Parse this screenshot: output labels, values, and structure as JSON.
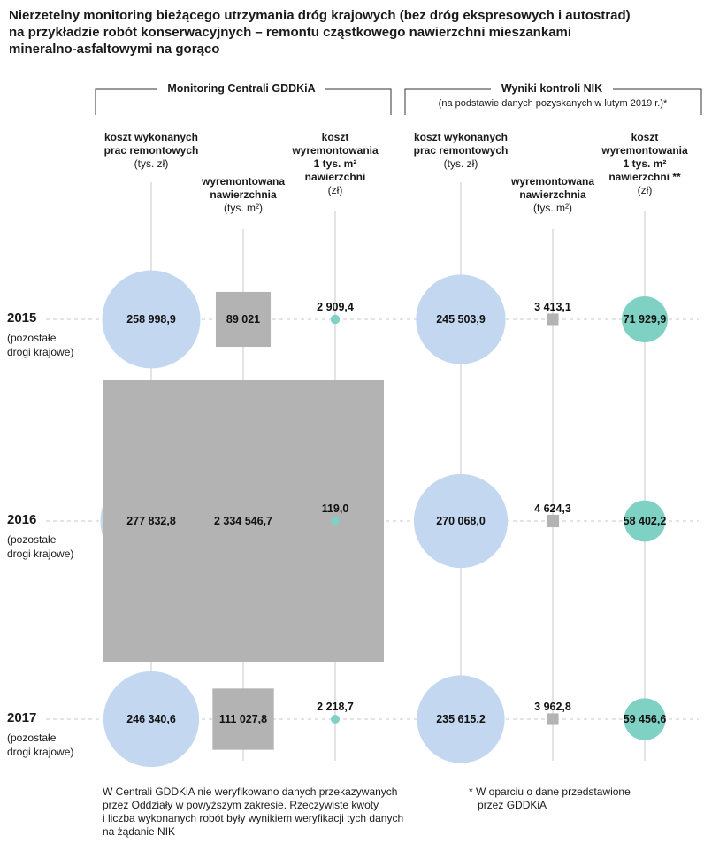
{
  "title": {
    "line1": "Nierzetelny monitoring bieżącego utrzymania dróg krajowych (bez dróg ekspresowych i autostrad)",
    "line2": "na przykładzie robót konserwacyjnych – remontu cząstkowego nawierzchni mieszankami",
    "line3": "mineralno-asfaltowymi na gorąco"
  },
  "groups": {
    "left": "Monitoring Centrali GDDKiA",
    "right": "Wyniki kontroli NIK",
    "right_sub": "(na podstawie danych pozyskanych w lutym 2019 r.)*"
  },
  "columns": {
    "c1": {
      "l1": "koszt wykonanych",
      "l2": "prac remontowych",
      "unit": "(tys. zł)"
    },
    "c2": {
      "l1": "wyremontowana",
      "l2": "nawierzchnia",
      "unit": "(tys. m²)"
    },
    "c3": {
      "l1": "koszt",
      "l2": "wyremontowania",
      "l3": "1 tys. m²",
      "l4": "nawierzchni",
      "unit": "(zł)"
    },
    "c4": {
      "l1": "koszt wykonanych",
      "l2": "prac remontowych",
      "unit": "(tys. zł)"
    },
    "c5": {
      "l1": "wyremontowana",
      "l2": "nawierzchnia",
      "unit": "(tys. m²)"
    },
    "c6": {
      "l1": "koszt",
      "l2": "wyremontowania",
      "l3": "1 tys. m²",
      "l4": "nawierzchni **",
      "unit": "(zł)"
    }
  },
  "years": [
    {
      "year": "2015",
      "note1": "(pozostałe",
      "note2": "drogi krajowe)"
    },
    {
      "year": "2016",
      "note1": "(pozostałe",
      "note2": "drogi krajowe)"
    },
    {
      "year": "2017",
      "note1": "(pozostałe",
      "note2": "drogi krajowe)"
    }
  ],
  "footnotes": {
    "left1": "W Centrali GDDKiA nie weryfikowano danych przekazywanych",
    "left2": "przez Oddziały w powyższym zakresie. Rzeczywiste kwoty",
    "left3": "i liczba wykonanych robót były wynikiem weryfikacji tych danych",
    "left4": "na żądanie NIK",
    "right1": "* W oparciu o dane przedstawione",
    "right2": "przez GDDKiA"
  },
  "colors": {
    "blue": "#c3d8f0",
    "gray": "#b3b3b3",
    "teal": "#7fd1c3"
  },
  "chart_data": {
    "type": "bubble",
    "categories": [
      "2015",
      "2016",
      "2017"
    ],
    "series": [
      {
        "name": "koszt wykonanych prac remontowych (tys. zł) – Monitoring Centrali GDDKiA",
        "shape": "circle",
        "color": "#c3d8f0",
        "values": [
          258998.9,
          277832.8,
          246340.6
        ],
        "labels": [
          "258 998,9",
          "277 832,8",
          "246 340,6"
        ]
      },
      {
        "name": "wyremontowana nawierzchnia (tys. m²) – Monitoring Centrali GDDKiA",
        "shape": "square",
        "color": "#b3b3b3",
        "values": [
          89021,
          2334546.7,
          111027.8
        ],
        "labels": [
          "89 021",
          "2 334 546,7",
          "111 027,8"
        ]
      },
      {
        "name": "koszt wyremontowania 1 tys. m² nawierzchni (zł) – Monitoring Centrali GDDKiA",
        "shape": "circle",
        "color": "#7fd1c3",
        "values": [
          2909.4,
          119.0,
          2218.7
        ],
        "labels": [
          "2 909,4",
          "119,0",
          "2 218,7"
        ]
      },
      {
        "name": "koszt wykonanych prac remontowych (tys. zł) – Wyniki kontroli NIK",
        "shape": "circle",
        "color": "#c3d8f0",
        "values": [
          245503.9,
          270068.0,
          235615.2
        ],
        "labels": [
          "245 503,9",
          "270 068,0",
          "235 615,2"
        ]
      },
      {
        "name": "wyremontowana nawierzchnia (tys. m²) – Wyniki kontroli NIK",
        "shape": "square",
        "color": "#b3b3b3",
        "values": [
          3413.1,
          4624.3,
          3962.8
        ],
        "labels": [
          "3 413,1",
          "4 624,3",
          "3 962,8"
        ]
      },
      {
        "name": "koszt wyremontowania 1 tys. m² nawierzchni (zł) – Wyniki kontroli NIK",
        "shape": "circle",
        "color": "#7fd1c3",
        "values": [
          71929.9,
          58402.2,
          59456.6
        ],
        "labels": [
          "71 929,9",
          "58 402,2",
          "59 456,6"
        ]
      }
    ]
  }
}
